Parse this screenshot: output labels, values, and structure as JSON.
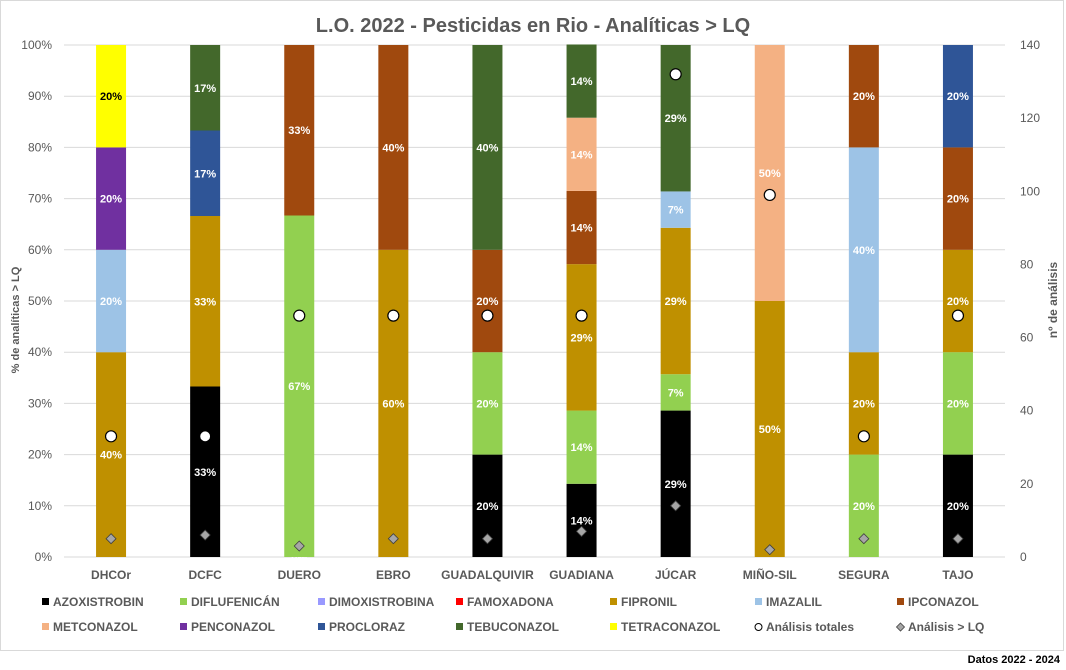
{
  "chart_data": {
    "type": "bar",
    "stacked": "percent",
    "title": "L.O. 2022 - Pesticidas en Rio - Analíticas > LQ",
    "ylabel": "% de analíticas  > LQ",
    "y2label": "nº de análisis",
    "ylim": [
      0,
      100
    ],
    "y2lim": [
      0,
      140
    ],
    "yticks": [
      "0%",
      "10%",
      "20%",
      "30%",
      "40%",
      "50%",
      "60%",
      "70%",
      "80%",
      "90%",
      "100%"
    ],
    "y2ticks": [
      "0",
      "20",
      "40",
      "60",
      "80",
      "100",
      "120",
      "140"
    ],
    "grid": true,
    "legend": "bottom",
    "categories": [
      "DHCOr",
      "DCFC",
      "DUERO",
      "EBRO",
      "GUADALQUIVIR",
      "GUADIANA",
      "JÚCAR",
      "MIÑO-SIL",
      "SEGURA",
      "TAJO"
    ],
    "series": [
      {
        "name": "AZOXISTROBIN",
        "color": "#000000",
        "values": [
          null,
          33.3,
          0,
          null,
          20,
          14.3,
          28.6,
          null,
          null,
          20
        ]
      },
      {
        "name": "DIFLUFENICÁN",
        "color": "#92d050",
        "values": [
          null,
          null,
          66.7,
          null,
          20,
          14.3,
          7.1,
          null,
          20,
          20
        ]
      },
      {
        "name": "DIMOXISTROBINA",
        "color": "#9999ff",
        "values": [
          null,
          null,
          null,
          null,
          null,
          null,
          null,
          null,
          null,
          null
        ]
      },
      {
        "name": "FAMOXADONA",
        "color": "#ff0000",
        "values": [
          null,
          null,
          null,
          null,
          null,
          null,
          null,
          null,
          null,
          null
        ]
      },
      {
        "name": "FIPRONIL",
        "color": "#bf9000",
        "values": [
          40,
          33.3,
          null,
          60,
          null,
          28.6,
          28.6,
          50,
          20,
          20
        ]
      },
      {
        "name": "IMAZALIL",
        "color": "#9dc3e6",
        "values": [
          20,
          null,
          null,
          null,
          null,
          null,
          7.1,
          null,
          40,
          null
        ]
      },
      {
        "name": "IPCONAZOL",
        "color": "#a0490e",
        "values": [
          null,
          null,
          33.3,
          40,
          20,
          14.3,
          null,
          null,
          20,
          20
        ]
      },
      {
        "name": "METCONAZOL",
        "color": "#f4b183",
        "values": [
          null,
          null,
          null,
          null,
          null,
          14.3,
          null,
          50,
          null,
          null
        ]
      },
      {
        "name": "PENCONAZOL",
        "color": "#7030a0",
        "values": [
          20,
          null,
          null,
          null,
          null,
          null,
          null,
          null,
          null,
          null
        ]
      },
      {
        "name": "PROCLORAZ",
        "color": "#2f5597",
        "values": [
          null,
          16.7,
          null,
          null,
          null,
          null,
          null,
          null,
          null,
          20
        ]
      },
      {
        "name": "TEBUCONAZOL",
        "color": "#43682b",
        "values": [
          null,
          16.7,
          null,
          null,
          40,
          14.3,
          28.6,
          null,
          null,
          null
        ]
      },
      {
        "name": "TETRACONAZOL",
        "color": "#ffff00",
        "values": [
          20,
          null,
          null,
          null,
          null,
          null,
          null,
          null,
          null,
          null
        ]
      }
    ],
    "markers": [
      {
        "name": "Análisis totales",
        "shape": "circle",
        "axis": "y2",
        "values": [
          33,
          33,
          66,
          66,
          66,
          66,
          132,
          99,
          33,
          66
        ]
      },
      {
        "name": "Análisis > LQ",
        "shape": "diamond",
        "axis": "y2",
        "values": [
          5,
          6,
          3,
          5,
          5,
          7,
          14,
          2,
          5,
          5
        ]
      }
    ]
  },
  "footer": "Datos 2022 - 2024"
}
